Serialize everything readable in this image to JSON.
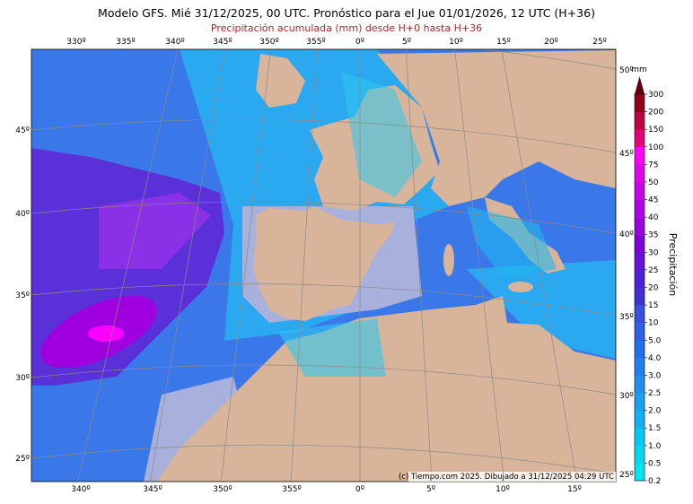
{
  "header": {
    "title": "Modelo GFS. Mié 31/12/2025, 00 UTC. Pronóstico para el Jue 01/01/2026, 12 UTC (H+36)",
    "subtitle": "Precipitación acumulada (mm) desde H+0 hasta H+36"
  },
  "map": {
    "top_longitudes": [
      "330º",
      "335º",
      "340º",
      "345º",
      "350º",
      "355º",
      "0º",
      "5º",
      "10º",
      "15º",
      "20º",
      "25º"
    ],
    "bottom_longitudes": [
      "340º",
      "345º",
      "350º",
      "355º",
      "0º",
      "5º",
      "10º",
      "15º"
    ],
    "left_latitudes": [
      "45º",
      "40º",
      "35º",
      "30º",
      "25º"
    ],
    "right_latitudes": [
      "50º",
      "45º",
      "40º",
      "35º",
      "30º",
      "25º"
    ],
    "credit": "(c) Tiempo.com 2025. Dibujado a 31/12/2025 04:29 UTC"
  },
  "legend": {
    "unit": "mm",
    "label": "Precipitación",
    "levels": [
      "0.2",
      "0.5",
      "1.0",
      "1.5",
      "2.0",
      "2.5",
      "3.0",
      "4.0",
      "5.0",
      "10",
      "15",
      "20",
      "25",
      "30",
      "35",
      "40",
      "45",
      "50",
      "75",
      "100",
      "150",
      "200",
      "300"
    ],
    "colors": [
      "#00e5ee",
      "#00d8f0",
      "#00c8f5",
      "#10b0f5",
      "#1aa0f0",
      "#2090f0",
      "#2080f0",
      "#2070ee",
      "#3060e8",
      "#3850e0",
      "#4030d8",
      "#5020d8",
      "#6a10d8",
      "#8000dd",
      "#9a00e0",
      "#b000e6",
      "#c800ea",
      "#e000ee",
      "#ff00ff",
      "#e8007a",
      "#c00040",
      "#900018",
      "#600010"
    ]
  }
}
